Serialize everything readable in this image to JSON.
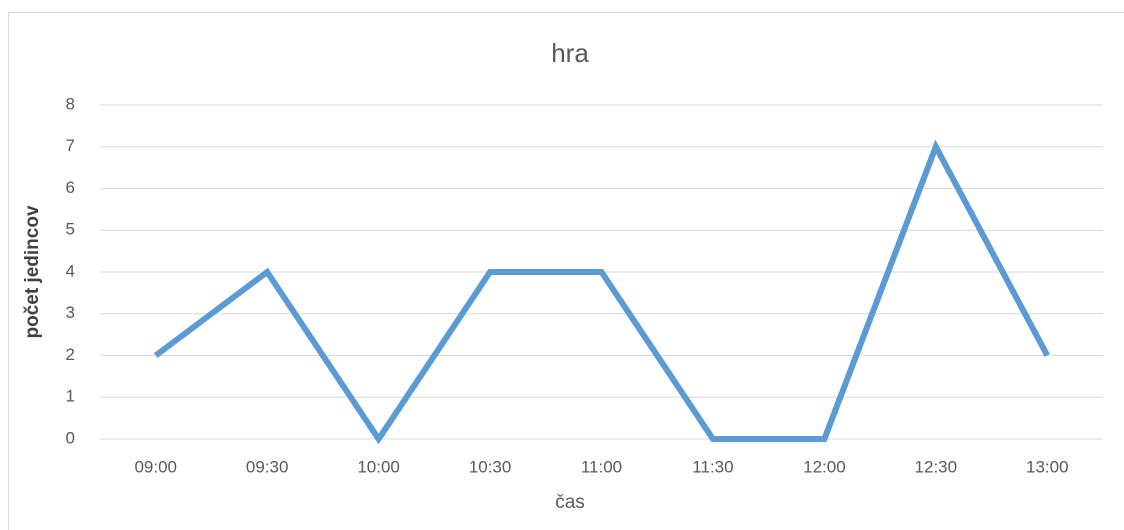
{
  "chart_data": {
    "type": "line",
    "title": "hra",
    "x_label": "čas",
    "y_label": "počet jedincov",
    "categories": [
      "09:00",
      "09:30",
      "10:00",
      "10:30",
      "11:00",
      "11:30",
      "12:00",
      "12:30",
      "13:00"
    ],
    "series": [
      {
        "name": "hra",
        "color": "#5b9bd5",
        "values": [
          2,
          4,
          0,
          4,
          4,
          0,
          0,
          7,
          2
        ]
      }
    ],
    "ylim": [
      0,
      8
    ],
    "yticks": [
      0,
      1,
      2,
      3,
      4,
      5,
      6,
      7,
      8
    ],
    "grid": true,
    "legend": false
  }
}
